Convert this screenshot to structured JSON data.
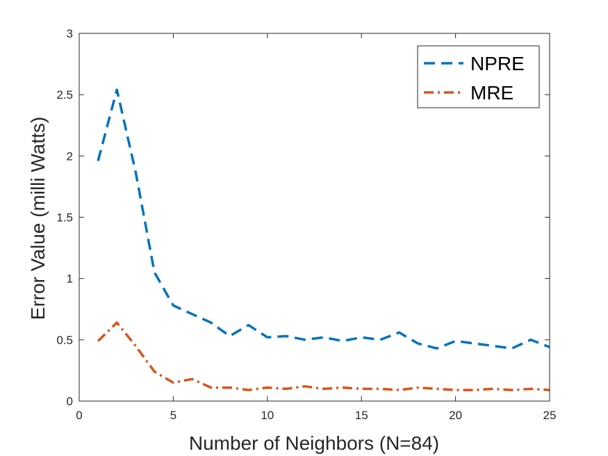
{
  "chart_data": {
    "type": "line",
    "xlabel": "Number of Neighbors (N=84)",
    "ylabel": "Error Value (milli Watts)",
    "xlim": [
      0,
      25
    ],
    "ylim": [
      0,
      3
    ],
    "xticks": [
      0,
      5,
      10,
      15,
      20,
      25
    ],
    "xtick_labels": [
      "0",
      "5",
      "10",
      "15",
      "20",
      "25"
    ],
    "yticks": [
      0,
      0.5,
      1,
      1.5,
      2,
      2.5,
      3
    ],
    "ytick_labels": [
      "0",
      "0.5",
      "1",
      "1.5",
      "2",
      "2.5",
      "3"
    ],
    "grid": false,
    "legend_position": "top-right",
    "x": [
      1,
      2,
      3,
      4,
      5,
      6,
      7,
      8,
      9,
      10,
      11,
      12,
      13,
      14,
      15,
      16,
      17,
      18,
      19,
      20,
      21,
      22,
      23,
      24,
      25
    ],
    "series": [
      {
        "name": "NPRE",
        "color": "#0072BD",
        "style": "dashed",
        "values": [
          1.96,
          2.54,
          1.87,
          1.05,
          0.78,
          0.71,
          0.64,
          0.53,
          0.62,
          0.52,
          0.53,
          0.5,
          0.52,
          0.49,
          0.52,
          0.5,
          0.56,
          0.47,
          0.43,
          0.49,
          0.47,
          0.45,
          0.43,
          0.5,
          0.44
        ]
      },
      {
        "name": "MRE",
        "color": "#D95319",
        "style": "dash-dot",
        "values": [
          0.49,
          0.64,
          0.45,
          0.24,
          0.15,
          0.18,
          0.11,
          0.11,
          0.09,
          0.11,
          0.1,
          0.12,
          0.1,
          0.11,
          0.1,
          0.1,
          0.09,
          0.11,
          0.1,
          0.09,
          0.09,
          0.1,
          0.09,
          0.1,
          0.09
        ]
      }
    ]
  }
}
